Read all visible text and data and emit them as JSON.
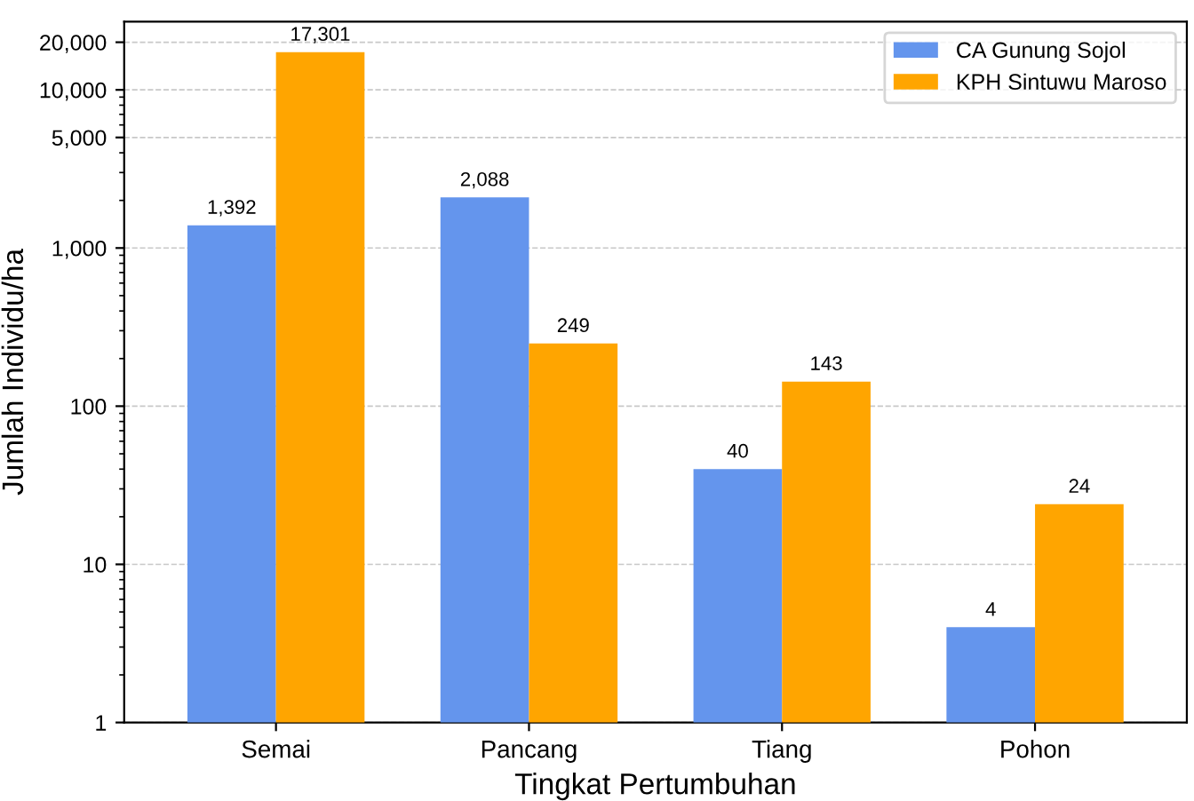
{
  "chart_data": {
    "type": "bar",
    "xlabel": "Tingkat Pertumbuhan",
    "ylabel": "Jumlah Individu/ha",
    "categories": [
      "Semai",
      "Pancang",
      "Tiang",
      "Pohon"
    ],
    "series": [
      {
        "name": "CA Gunung Sojol",
        "color": "#6495ed",
        "values": [
          1392,
          2088,
          40,
          4
        ],
        "value_labels": [
          "1,392",
          "2,088",
          "40",
          "4"
        ]
      },
      {
        "name": "KPH Sintuwu Maroso",
        "color": "#ffa500",
        "values": [
          17301,
          249,
          143,
          24
        ],
        "value_labels": [
          "17,301",
          "249",
          "143",
          "24"
        ]
      }
    ],
    "log": true,
    "ylim": [
      1,
      27000
    ],
    "yticks": [
      1,
      10,
      100,
      {
        "value": 1000,
        "label": "1,000"
      },
      {
        "value": 5000,
        "label": "5,000"
      },
      {
        "value": 10000,
        "label": "10,000"
      },
      {
        "value": 20000,
        "label": "20,000"
      }
    ],
    "grid": "y",
    "legend": "top right"
  }
}
